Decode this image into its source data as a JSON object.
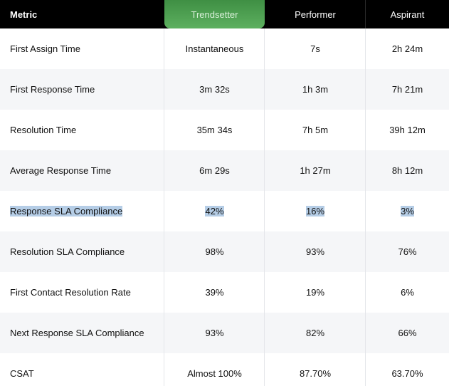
{
  "header": {
    "metric": "Metric",
    "trendsetter": "Trendsetter",
    "performer": "Performer",
    "aspirant": "Aspirant"
  },
  "rows": [
    {
      "metric": "First Assign Time",
      "trendsetter": "Instantaneous",
      "performer": "7s",
      "aspirant": "2h 24m"
    },
    {
      "metric": "First Response Time",
      "trendsetter": "3m 32s",
      "performer": "1h 3m",
      "aspirant": "7h 21m"
    },
    {
      "metric": "Resolution Time",
      "trendsetter": "35m 34s",
      "performer": "7h 5m",
      "aspirant": "39h 12m"
    },
    {
      "metric": "Average Response Time",
      "trendsetter": "6m 29s",
      "performer": "1h 27m",
      "aspirant": "8h 12m"
    },
    {
      "metric": "Response SLA Compliance",
      "trendsetter": "42%",
      "performer": "16%",
      "aspirant": "3%"
    },
    {
      "metric": "Resolution SLA Compliance",
      "trendsetter": "98%",
      "performer": "93%",
      "aspirant": "76%"
    },
    {
      "metric": "First Contact Resolution Rate",
      "trendsetter": "39%",
      "performer": "19%",
      "aspirant": "6%"
    },
    {
      "metric": "Next Response SLA Compliance",
      "trendsetter": "93%",
      "performer": "82%",
      "aspirant": "66%"
    },
    {
      "metric": "CSAT",
      "trendsetter": "Almost 100%",
      "performer": "87.70%",
      "aspirant": "63.70%"
    }
  ],
  "colors": {
    "header_bg": "#000000",
    "trendsetter_accent": "#5db05f",
    "alt_row_bg": "#f5f6f8",
    "selection_highlight": "#b5cde6"
  }
}
